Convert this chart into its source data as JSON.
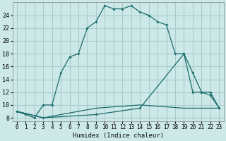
{
  "xlabel": "Humidex (Indice chaleur)",
  "bg_color": "#cce8e8",
  "grid_color": "#aacccc",
  "line_color": "#1a6b6b",
  "x_ticks": [
    0,
    1,
    2,
    3,
    4,
    5,
    6,
    7,
    8,
    9,
    10,
    11,
    12,
    13,
    14,
    15,
    16,
    17,
    18,
    19,
    20,
    21,
    22,
    23
  ],
  "y_ticks": [
    8,
    10,
    12,
    14,
    16,
    18,
    20,
    22,
    24
  ],
  "ylim": [
    7.5,
    26.0
  ],
  "xlim": [
    -0.5,
    23.5
  ],
  "line1_x": [
    0,
    1,
    2,
    3,
    4,
    5,
    6,
    7,
    8,
    9,
    10,
    11,
    12,
    13,
    14,
    15,
    16,
    17,
    18,
    19,
    20,
    21,
    22,
    23
  ],
  "line1_y": [
    9.0,
    8.5,
    8.0,
    10.0,
    10.0,
    15.0,
    17.5,
    18.0,
    22.0,
    23.0,
    25.5,
    25.0,
    25.0,
    25.5,
    24.5,
    24.0,
    23.0,
    22.5,
    18.0,
    18.0,
    12.0,
    12.0,
    11.5,
    9.5
  ],
  "line2_x": [
    0,
    3,
    9,
    14,
    19,
    20,
    21,
    22,
    23
  ],
  "line2_y": [
    9.0,
    8.0,
    8.5,
    9.5,
    18.0,
    15.0,
    12.0,
    12.0,
    9.5
  ],
  "line3_x": [
    0,
    3,
    9,
    14,
    19,
    22,
    23
  ],
  "line3_y": [
    9.0,
    8.0,
    9.5,
    10.0,
    9.5,
    9.5,
    9.5
  ]
}
